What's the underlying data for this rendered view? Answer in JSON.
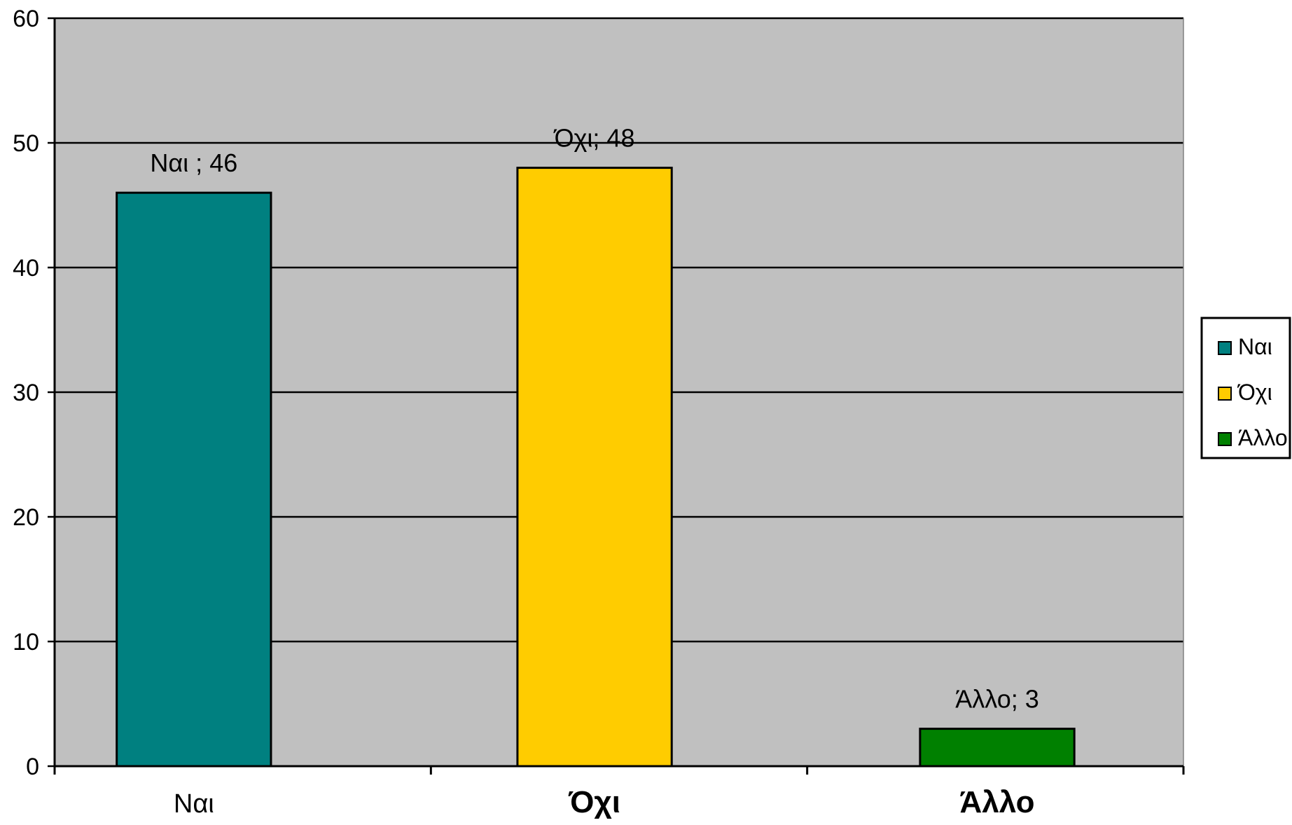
{
  "chart_data": {
    "type": "bar",
    "categories": [
      "Ναι",
      "Όχι",
      "Άλλο"
    ],
    "values": [
      46,
      48,
      3
    ],
    "colors": [
      "#008080",
      "#FFCC00",
      "#008000"
    ],
    "data_labels": [
      "Ναι ; 46",
      "Όχι; 48",
      "Άλλο; 3"
    ],
    "category_bold": [
      false,
      true,
      true
    ],
    "ylim": [
      0,
      60
    ],
    "yticks": [
      0,
      10,
      20,
      30,
      40,
      50,
      60
    ],
    "grid": true,
    "plot_background": "#C0C0C0",
    "legend": {
      "position": "right",
      "entries": [
        "Ναι",
        "Όχι",
        "Άλλο"
      ]
    }
  }
}
